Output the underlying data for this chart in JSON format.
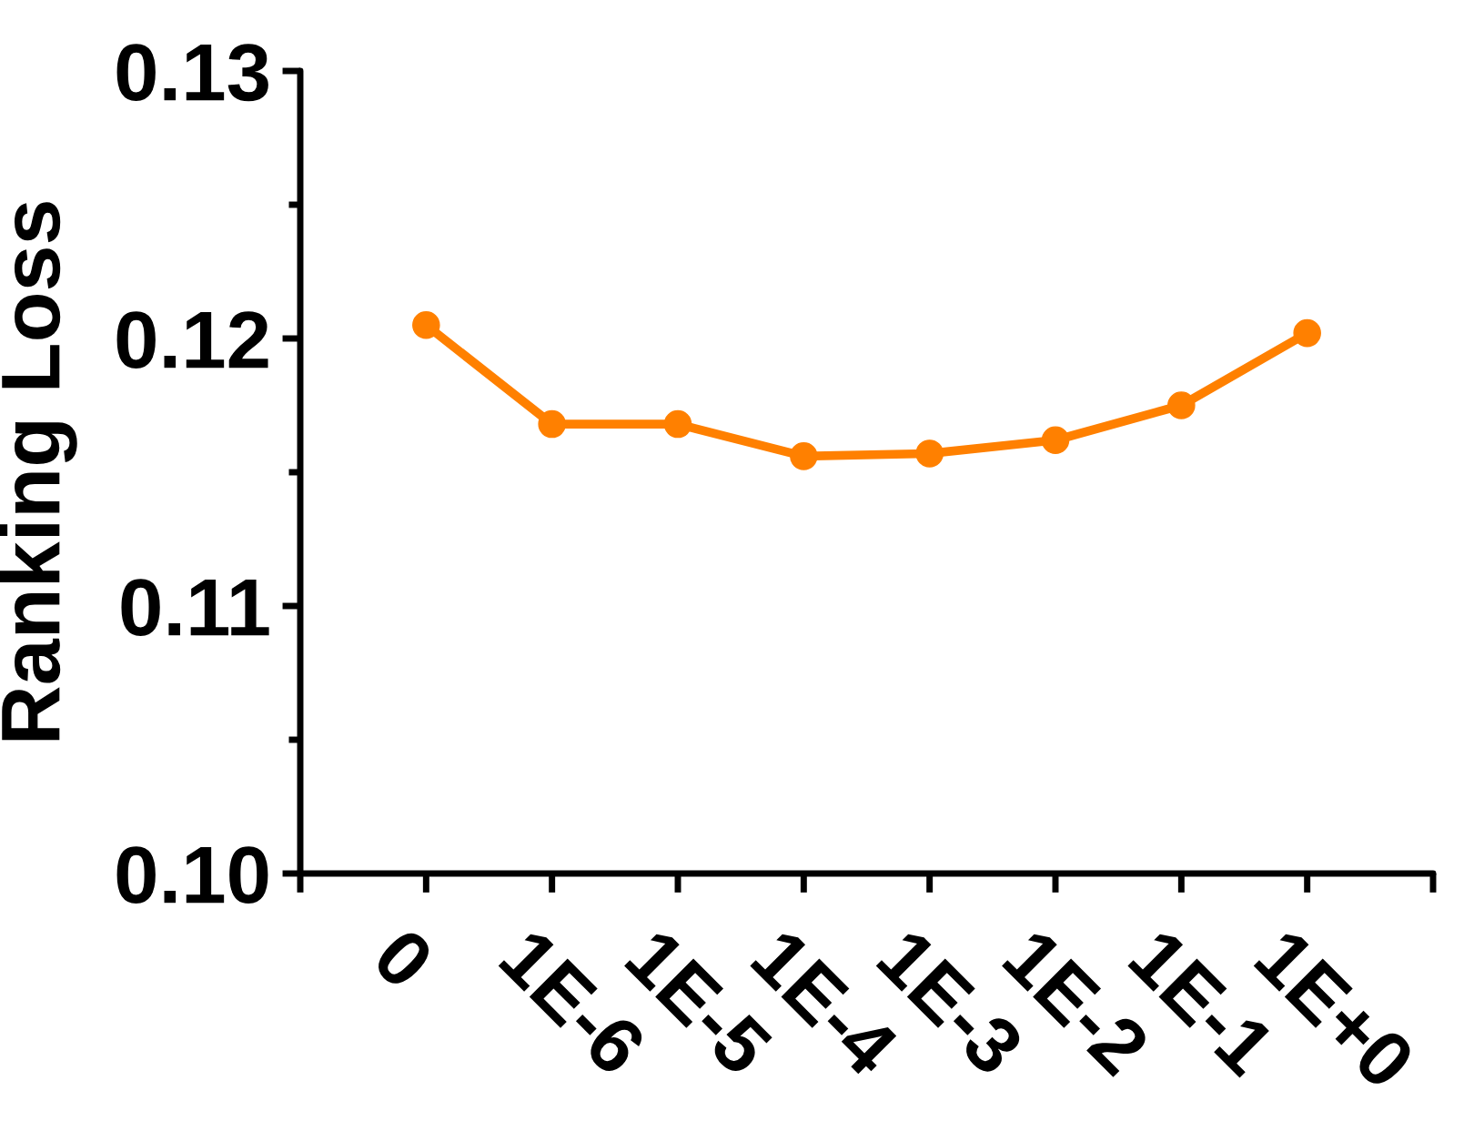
{
  "chart_data": {
    "type": "line",
    "ylabel": "Ranking Loss",
    "categories": [
      "0",
      "1E-6",
      "1E-5",
      "1E-4",
      "1E-3",
      "1E-2",
      "1E-1",
      "1E+0"
    ],
    "series": [
      {
        "color": "#ff8000",
        "values": [
          0.1205,
          0.1168,
          0.1168,
          0.1156,
          0.1157,
          0.1162,
          0.1175,
          0.1202
        ]
      }
    ],
    "ylim": [
      0.1,
      0.13
    ],
    "yticks": [
      {
        "value": 0.1,
        "label": "0.10"
      },
      {
        "value": 0.105,
        "label": null
      },
      0.11,
      {
        "value": 0.115,
        "label": null
      },
      0.12,
      {
        "value": 0.125,
        "label": null
      },
      0.13
    ],
    "marker": "circle",
    "line_style": "solid"
  }
}
